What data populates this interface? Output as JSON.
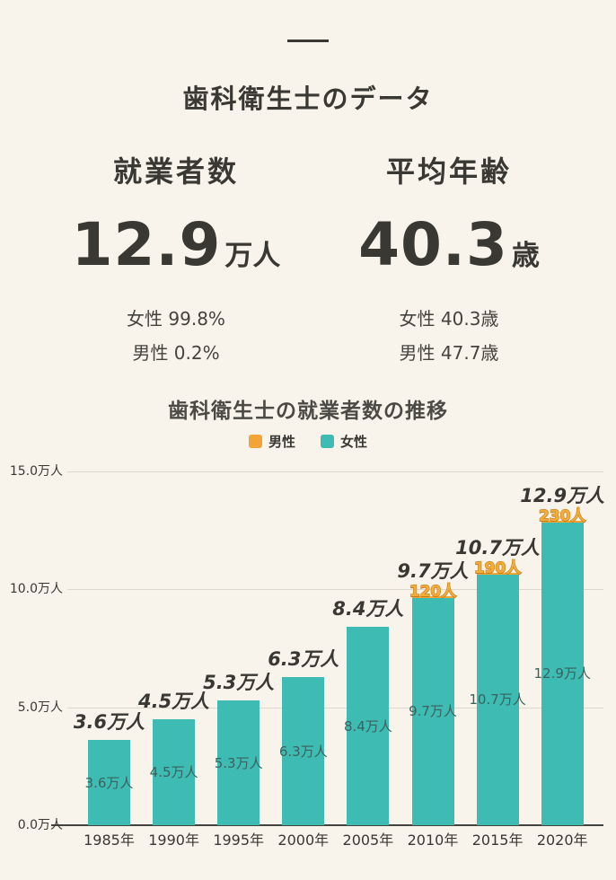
{
  "page": {
    "background": "#f8f4ec",
    "text_color": "#3a3833"
  },
  "header": {
    "title": "歯科衛生士のデータ"
  },
  "stats": [
    {
      "heading": "就業者数",
      "value": "12.9",
      "unit": "万人",
      "sub1": "女性 99.8%",
      "sub2": "男性 0.2%"
    },
    {
      "heading": "平均年齢",
      "value": "40.3",
      "unit": "歳",
      "sub1": "女性 40.3歳",
      "sub2": "男性 47.7歳"
    }
  ],
  "chart": {
    "title": "歯科衛生士の就業者数の推移",
    "legend": [
      {
        "label": "男性",
        "color": "#f2a436"
      },
      {
        "label": "女性",
        "color": "#3ebcb3"
      }
    ]
  },
  "chart_data": {
    "type": "bar",
    "stacked": true,
    "title": "歯科衛生士の就業者数の推移",
    "categories": [
      "1985年",
      "1990年",
      "1995年",
      "2000年",
      "2005年",
      "2010年",
      "2015年",
      "2020年"
    ],
    "series": [
      {
        "name": "女性",
        "color": "#3ebcb3",
        "unit": "万人",
        "values": [
          3.6,
          4.5,
          5.3,
          6.3,
          8.4,
          9.7,
          10.7,
          12.9
        ]
      },
      {
        "name": "男性",
        "color": "#f2a436",
        "unit": "人",
        "values": [
          0,
          0,
          0,
          0,
          0,
          120,
          190,
          230
        ]
      }
    ],
    "total_labels": [
      "3.6万人",
      "4.5万人",
      "5.3万人",
      "6.3万人",
      "8.4万人",
      "9.7万人",
      "10.7万人",
      "12.9万人"
    ],
    "male_labels": [
      "",
      "",
      "",
      "",
      "",
      "120人",
      "190人",
      "230人"
    ],
    "inner_labels": [
      "3.6万人",
      "4.5万人",
      "5.3万人",
      "6.3万人",
      "8.4万人",
      "9.7万人",
      "10.7万人",
      "12.9万人"
    ],
    "y_ticks": [
      {
        "value": 15,
        "label": "15.0万人"
      },
      {
        "value": 10,
        "label": "10.0万人"
      },
      {
        "value": 5,
        "label": "5.0万人"
      },
      {
        "value": 0,
        "label": "0.0万人"
      }
    ],
    "ylim": [
      0,
      15
    ],
    "grid": true,
    "legend_position": "top"
  }
}
